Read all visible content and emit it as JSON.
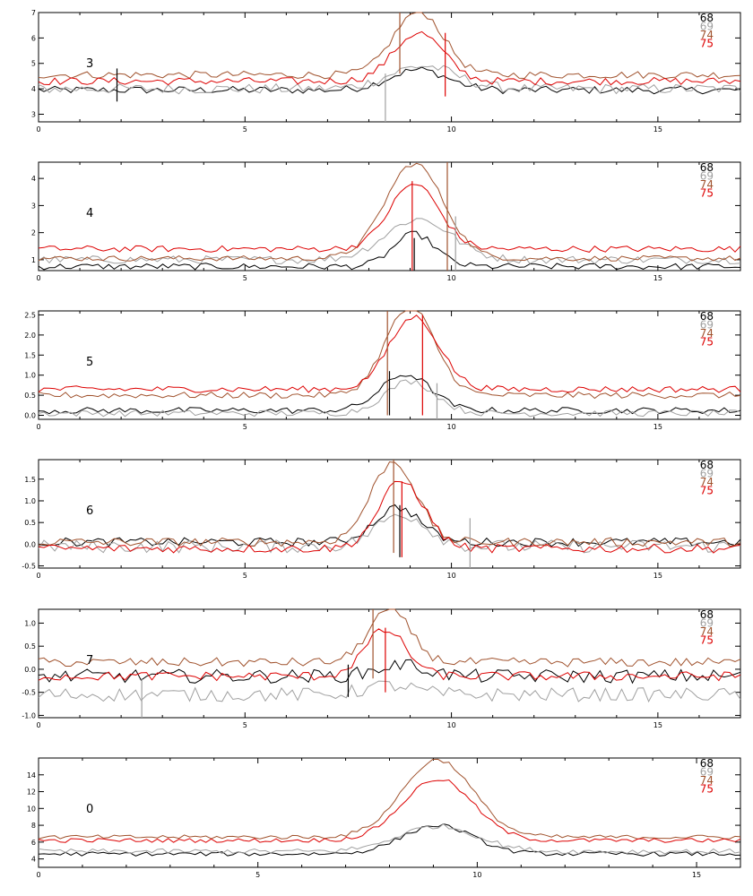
{
  "colors": {
    "axis": "#000000",
    "s68": "#000000",
    "s69": "#a0a0a0",
    "s74": "#a0522d",
    "s75": "#dd0000"
  },
  "legend_names": [
    "68",
    "69",
    "74",
    "75"
  ],
  "chart_data": [
    {
      "type": "line",
      "panel_label": "3",
      "xlim": [
        0,
        17
      ],
      "ylim": [
        2.7,
        7
      ],
      "xticks": [
        0,
        5,
        10,
        15
      ],
      "yticks": [
        3,
        4,
        5,
        6,
        7
      ],
      "ytick_labels": [
        "3",
        "4",
        "5",
        "6",
        "7"
      ],
      "legend_position": "top-right",
      "series": [
        {
          "name": "68",
          "baseline": 3.95,
          "peak": 0.8,
          "center": 9.2,
          "width": 0.7,
          "noise": 0.15
        },
        {
          "name": "69",
          "baseline": 4.0,
          "peak": 0.9,
          "center": 9.3,
          "width": 0.8,
          "noise": 0.2
        },
        {
          "name": "74",
          "baseline": 4.55,
          "peak": 2.5,
          "center": 9.2,
          "width": 0.6,
          "noise": 0.15
        },
        {
          "name": "75",
          "baseline": 4.3,
          "peak": 1.9,
          "center": 9.2,
          "width": 0.6,
          "noise": 0.15
        }
      ],
      "markers": [
        {
          "series": "68",
          "x": 1.9,
          "y_from": 3.5,
          "y_to": 4.8
        },
        {
          "series": "69",
          "x": 8.4,
          "y_from": 2.7,
          "y_to": 4.6
        },
        {
          "series": "74",
          "x": 8.75,
          "y_from": 4.6,
          "y_to": 7.0
        },
        {
          "series": "75",
          "x": 9.85,
          "y_from": 3.7,
          "y_to": 6.2
        }
      ]
    },
    {
      "type": "line",
      "panel_label": "4",
      "xlim": [
        0,
        17
      ],
      "ylim": [
        0.6,
        4.6
      ],
      "xticks": [
        0,
        5,
        10,
        15
      ],
      "yticks": [
        1,
        2,
        3,
        4
      ],
      "ytick_labels": [
        "1",
        "2",
        "3",
        "4"
      ],
      "legend_position": "top-right",
      "series": [
        {
          "name": "68",
          "baseline": 0.75,
          "peak": 1.2,
          "center": 9.1,
          "width": 0.5,
          "noise": 0.12
        },
        {
          "name": "69",
          "baseline": 1.0,
          "peak": 1.5,
          "center": 9.2,
          "width": 0.8,
          "noise": 0.15
        },
        {
          "name": "74",
          "baseline": 1.05,
          "peak": 3.5,
          "center": 9.1,
          "width": 0.7,
          "noise": 0.1
        },
        {
          "name": "75",
          "baseline": 1.4,
          "peak": 2.4,
          "center": 9.1,
          "width": 0.6,
          "noise": 0.12
        }
      ],
      "markers": [
        {
          "series": "68",
          "x": 9.1,
          "y_from": 0.6,
          "y_to": 1.8
        },
        {
          "series": "69",
          "x": 10.1,
          "y_from": 0.6,
          "y_to": 2.6
        },
        {
          "series": "74",
          "x": 9.9,
          "y_from": 0.6,
          "y_to": 4.6
        },
        {
          "series": "75",
          "x": 9.05,
          "y_from": 0.6,
          "y_to": 3.9
        }
      ]
    },
    {
      "type": "line",
      "panel_label": "5",
      "xlim": [
        0,
        17
      ],
      "ylim": [
        -0.1,
        2.6
      ],
      "xticks": [
        0,
        5,
        10,
        15
      ],
      "yticks": [
        0,
        0.5,
        1,
        1.5,
        2,
        2.5
      ],
      "ytick_labels": [
        "0.0",
        "0.5",
        "1.0",
        "1.5",
        "2.0",
        "2.5"
      ],
      "legend_position": "top-right",
      "series": [
        {
          "name": "68",
          "baseline": 0.12,
          "peak": 0.9,
          "center": 8.9,
          "width": 0.6,
          "noise": 0.08
        },
        {
          "name": "69",
          "baseline": 0.05,
          "peak": 0.8,
          "center": 9.0,
          "width": 0.6,
          "noise": 0.08
        },
        {
          "name": "74",
          "baseline": 0.5,
          "peak": 2.2,
          "center": 9.0,
          "width": 0.6,
          "noise": 0.08
        },
        {
          "name": "75",
          "baseline": 0.65,
          "peak": 1.8,
          "center": 9.1,
          "width": 0.6,
          "noise": 0.08
        }
      ],
      "markers": [
        {
          "series": "68",
          "x": 8.5,
          "y_from": 0.0,
          "y_to": 1.1
        },
        {
          "series": "69",
          "x": 9.65,
          "y_from": -0.1,
          "y_to": 0.8
        },
        {
          "series": "74",
          "x": 8.45,
          "y_from": 0.0,
          "y_to": 2.6
        },
        {
          "series": "75",
          "x": 9.3,
          "y_from": 0.0,
          "y_to": 2.5
        }
      ]
    },
    {
      "type": "line",
      "panel_label": "6",
      "xlim": [
        0,
        17
      ],
      "ylim": [
        -0.55,
        1.95
      ],
      "xticks": [
        0,
        5,
        10,
        15
      ],
      "yticks": [
        -0.5,
        0,
        0.5,
        1,
        1.5
      ],
      "ytick_labels": [
        "-0.5",
        "0.0",
        "0.5",
        "1.0",
        "1.5"
      ],
      "legend_position": "top-right",
      "series": [
        {
          "name": "68",
          "baseline": 0.05,
          "peak": 0.8,
          "center": 8.7,
          "width": 0.55,
          "noise": 0.1
        },
        {
          "name": "69",
          "baseline": -0.05,
          "peak": 0.75,
          "center": 8.8,
          "width": 0.6,
          "noise": 0.15
        },
        {
          "name": "74",
          "baseline": 0.05,
          "peak": 1.85,
          "center": 8.6,
          "width": 0.55,
          "noise": 0.1
        },
        {
          "name": "75",
          "baseline": -0.1,
          "peak": 1.55,
          "center": 8.8,
          "width": 0.55,
          "noise": 0.1
        }
      ],
      "markers": [
        {
          "series": "68",
          "x": 8.75,
          "y_from": -0.3,
          "y_to": 0.9
        },
        {
          "series": "69",
          "x": 10.45,
          "y_from": -0.55,
          "y_to": 0.6
        },
        {
          "series": "74",
          "x": 8.6,
          "y_from": -0.2,
          "y_to": 1.95
        },
        {
          "series": "75",
          "x": 8.8,
          "y_from": -0.3,
          "y_to": 1.45
        }
      ]
    },
    {
      "type": "line",
      "panel_label": "7",
      "xlim": [
        0,
        17
      ],
      "ylim": [
        -1.05,
        1.3
      ],
      "xticks": [
        0,
        5,
        10,
        15
      ],
      "yticks": [
        -1,
        -0.5,
        0,
        0.5,
        1
      ],
      "ytick_labels": [
        "-1.0",
        "-0.5",
        "0.0",
        "0.5",
        "1.0"
      ],
      "legend_position": "top-right",
      "series": [
        {
          "name": "68",
          "baseline": -0.15,
          "peak": 0.25,
          "center": 8.8,
          "width": 0.6,
          "noise": 0.15
        },
        {
          "name": "69",
          "baseline": -0.55,
          "peak": 0.2,
          "center": 8.5,
          "width": 0.6,
          "noise": 0.15
        },
        {
          "name": "74",
          "baseline": 0.15,
          "peak": 1.15,
          "center": 8.5,
          "width": 0.5,
          "noise": 0.1
        },
        {
          "name": "75",
          "baseline": -0.15,
          "peak": 1.0,
          "center": 8.4,
          "width": 0.5,
          "noise": 0.1
        }
      ],
      "markers": [
        {
          "series": "68",
          "x": 7.5,
          "y_from": -0.6,
          "y_to": 0.1
        },
        {
          "series": "69",
          "x": 2.5,
          "y_from": -1.05,
          "y_to": -0.2
        },
        {
          "series": "74",
          "x": 8.1,
          "y_from": -0.2,
          "y_to": 1.3
        },
        {
          "series": "75",
          "x": 8.4,
          "y_from": -0.5,
          "y_to": 0.9
        }
      ]
    },
    {
      "type": "line",
      "panel_label": "0",
      "xlim": [
        0,
        16
      ],
      "ylim": [
        3,
        16
      ],
      "xticks": [
        0,
        5,
        10,
        15
      ],
      "yticks": [
        4,
        6,
        8,
        10,
        12,
        14
      ],
      "ytick_labels": [
        "4",
        "6",
        "8",
        "10",
        "12",
        "14"
      ],
      "legend_position": "top-right",
      "series": [
        {
          "name": "68",
          "baseline": 4.6,
          "peak": 3.4,
          "center": 9.1,
          "width": 0.8,
          "noise": 0.25
        },
        {
          "name": "69",
          "baseline": 4.9,
          "peak": 3.0,
          "center": 9.1,
          "width": 0.9,
          "noise": 0.3
        },
        {
          "name": "74",
          "baseline": 6.6,
          "peak": 9.2,
          "center": 9.1,
          "width": 0.8,
          "noise": 0.25
        },
        {
          "name": "75",
          "baseline": 6.2,
          "peak": 7.3,
          "center": 9.1,
          "width": 0.8,
          "noise": 0.25
        }
      ],
      "markers": []
    }
  ]
}
